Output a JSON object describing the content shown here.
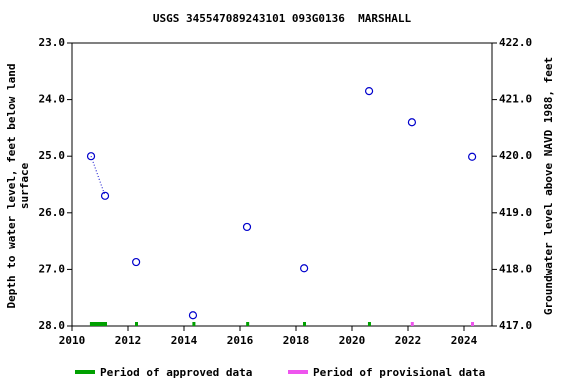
{
  "chart_data": {
    "type": "scatter",
    "title": "USGS 345547089243101 093G0136  MARSHALL",
    "ylabel": [
      "Depth to water level, feet below land",
      "surface"
    ],
    "y2label": "Groundwater level above NAVD 1988, feet",
    "xlim": [
      2010,
      2025
    ],
    "xticks": [
      2010,
      2012,
      2014,
      2016,
      2018,
      2020,
      2022,
      2024
    ],
    "ylim": [
      28,
      23
    ],
    "yticks": [
      {
        "value": 23,
        "label": "23.0"
      },
      {
        "value": 24,
        "label": "24.0"
      },
      {
        "value": 25,
        "label": "25.0"
      },
      {
        "value": 26,
        "label": "26.0"
      },
      {
        "value": 27,
        "label": "27.0"
      },
      {
        "value": 28,
        "label": "28.0"
      }
    ],
    "y2lim": [
      417,
      422
    ],
    "y2ticks": [
      {
        "value": 422,
        "label": "422.0"
      },
      {
        "value": 421,
        "label": "421.0"
      },
      {
        "value": 420,
        "label": "420.0"
      },
      {
        "value": 419,
        "label": "419.0"
      },
      {
        "value": 418,
        "label": "418.0"
      },
      {
        "value": 417,
        "label": "417.0"
      }
    ],
    "series": [
      {
        "color": "#0000cc",
        "x": [
          2010.68,
          2011.18,
          2012.29,
          2014.32,
          2016.25,
          2018.29,
          2020.61,
          2022.14,
          2024.29
        ],
        "y": [
          25.0,
          25.7,
          26.87,
          27.81,
          26.25,
          26.98,
          23.85,
          24.4,
          25.01
        ]
      }
    ],
    "periods": [
      {
        "name": "Period of approved data",
        "color": "#00a000",
        "ranges": [
          [
            2010.64,
            2011.25
          ],
          [
            2012.25,
            2012.35
          ],
          [
            2014.3,
            2014.4
          ],
          [
            2016.22,
            2016.32
          ],
          [
            2018.25,
            2018.35
          ],
          [
            2020.57,
            2020.67
          ]
        ]
      },
      {
        "name": "Period of provisional data",
        "color": "#ee55ee",
        "ranges": [
          [
            2022.1,
            2022.2
          ],
          [
            2024.25,
            2024.35
          ]
        ]
      }
    ]
  }
}
